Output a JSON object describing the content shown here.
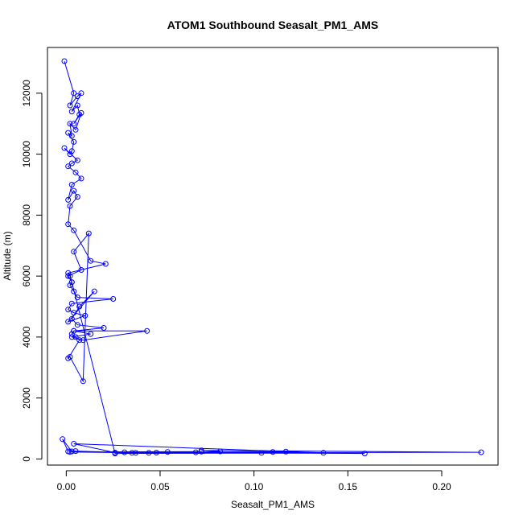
{
  "chart_data": {
    "type": "line",
    "title": "ATOM1 Southbound Seasalt_PM1_AMS",
    "xlabel": "Seasalt_PM1_AMS",
    "ylabel": "Altitude (m)",
    "xlim": [
      -0.01,
      0.23
    ],
    "ylim": [
      -200,
      13500
    ],
    "x_ticks": [
      0.0,
      0.05,
      0.1,
      0.15,
      0.2
    ],
    "x_tick_labels": [
      "0.00",
      "0.05",
      "0.10",
      "0.15",
      "0.20"
    ],
    "y_ticks": [
      0,
      2000,
      4000,
      6000,
      8000,
      10000,
      12000
    ],
    "y_tick_labels": [
      "0",
      "2000",
      "4000",
      "6000",
      "8000",
      "10000",
      "12000"
    ],
    "grid": false,
    "color": "#0000ff",
    "series": [
      {
        "x": [
          -0.001,
          0.004,
          0.002,
          0.006,
          0.008,
          0.003,
          0.006,
          0.007,
          0.004,
          0.008,
          0.005,
          0.002,
          0.003,
          0.001,
          0.004,
          0.003,
          0.002,
          -0.001,
          0.006,
          0.003,
          0.001,
          0.005,
          0.008,
          0.003,
          0.001,
          0.004,
          0.006,
          0.002,
          0.001,
          0.004,
          0.013,
          0.021,
          0.001,
          0.002,
          0.003,
          0.002,
          0.004,
          0.006,
          0.025,
          0.003,
          0.001,
          0.004,
          0.01,
          0.001,
          0.015,
          0.007,
          0.003,
          0.006,
          0.02,
          0.004,
          0.013,
          0.003,
          0.009,
          0.043,
          0.004,
          0.003,
          0.005,
          0.007,
          0.001,
          0.002,
          0.009,
          0.012,
          0.004,
          0.008,
          0.001,
          0.003,
          0.026,
          0.137,
          0.004,
          0.026,
          0.054,
          0.069,
          0.082,
          0.072,
          0.221,
          0.035,
          0.031,
          0.104,
          0.117,
          0.048,
          0.159,
          0.11,
          0.044,
          0.072,
          0.002,
          0.037,
          0.005,
          0.003,
          -0.002,
          0.001
        ],
        "y": [
          13050,
          12000,
          11600,
          11900,
          12000,
          11400,
          11600,
          11300,
          11000,
          11350,
          10800,
          11000,
          10600,
          10700,
          10400,
          10100,
          10000,
          10200,
          9800,
          9700,
          9600,
          9400,
          9200,
          9000,
          8500,
          8800,
          8600,
          8300,
          7700,
          7500,
          6500,
          6400,
          6100,
          6000,
          5800,
          5700,
          5500,
          5300,
          5250,
          5100,
          4900,
          4800,
          4700,
          4500,
          5500,
          5000,
          4600,
          4400,
          4300,
          4200,
          4100,
          4000,
          3900,
          4200,
          4200,
          4100,
          4000,
          3900,
          3300,
          3350,
          2550,
          7400,
          6800,
          6200,
          6000,
          5800,
          180,
          200,
          500,
          210,
          230,
          220,
          250,
          280,
          220,
          200,
          220,
          200,
          240,
          210,
          180,
          230,
          200,
          240,
          230,
          200,
          260,
          250,
          650,
          250
        ]
      }
    ]
  }
}
